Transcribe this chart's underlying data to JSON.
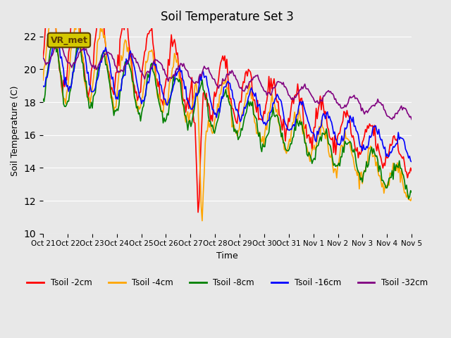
{
  "title": "Soil Temperature Set 3",
  "xlabel": "Time",
  "ylabel": "Soil Temperature (C)",
  "ylim": [
    10,
    22.5
  ],
  "background_color": "#e8e8e8",
  "plot_bg_color": "#e8e8e8",
  "annotation_text": "VR_met",
  "annotation_bg": "#d4c800",
  "annotation_border": "#5c3d00",
  "tick_labels": [
    "Oct 21",
    "Oct 22",
    "Oct 23",
    "Oct 24",
    "Oct 25",
    "Oct 26",
    "Oct 27",
    "Oct 28",
    "Oct 29",
    "Oct 30",
    "Oct 31",
    "Nov 1",
    "Nov 2",
    "Nov 3",
    "Nov 4",
    "Nov 5"
  ],
  "legend_labels": [
    "Tsoil -2cm",
    "Tsoil -4cm",
    "Tsoil -8cm",
    "Tsoil -16cm",
    "Tsoil -32cm"
  ],
  "colors": [
    "red",
    "orange",
    "green",
    "blue",
    "purple"
  ],
  "yticks": [
    10,
    12,
    14,
    16,
    18,
    20,
    22
  ]
}
